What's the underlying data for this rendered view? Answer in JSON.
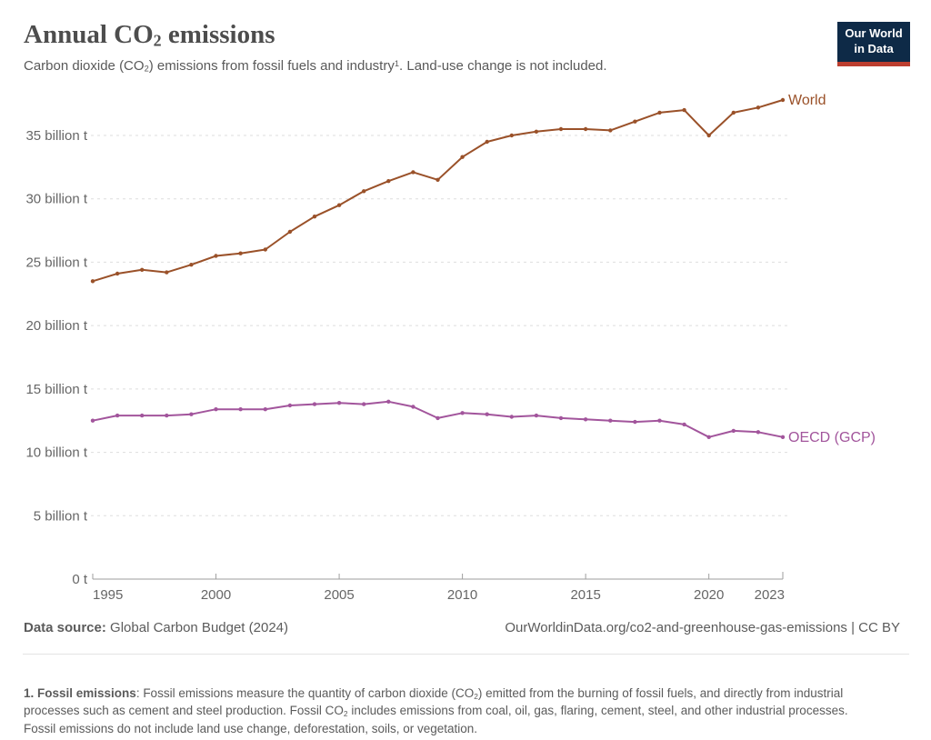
{
  "header": {
    "title_parts": [
      {
        "t": "Annual CO"
      },
      {
        "t": "2",
        "s": "sub"
      },
      {
        "t": " emissions"
      }
    ],
    "subtitle_parts": [
      {
        "t": "Carbon dioxide (CO"
      },
      {
        "t": "2",
        "s": "sub"
      },
      {
        "t": ") emissions from fossil fuels and industry"
      },
      {
        "t": "1",
        "s": "sup"
      },
      {
        "t": ". Land-use change is not included."
      }
    ]
  },
  "logo": {
    "line1": "Our World",
    "line2": "in Data",
    "bg": "#0e2a47",
    "bar": "#bc3e2f"
  },
  "chart_data": {
    "type": "line",
    "title": "Annual CO₂ emissions",
    "subtitle": "Carbon dioxide (CO₂) emissions from fossil fuels and industry¹. Land-use change is not included.",
    "xlabel": "",
    "ylabel": "",
    "unit": "billion t",
    "ylim": [
      0,
      37.8
    ],
    "grid": "horizontal-dashed",
    "legend_position": "end-of-line-labels",
    "years": [
      1995,
      1996,
      1997,
      1998,
      1999,
      2000,
      2001,
      2002,
      2003,
      2004,
      2005,
      2006,
      2007,
      2008,
      2009,
      2010,
      2011,
      2012,
      2013,
      2014,
      2015,
      2016,
      2017,
      2018,
      2019,
      2020,
      2021,
      2022,
      2023
    ],
    "series": [
      {
        "name": "World",
        "color": "#9a5129",
        "values": [
          23.5,
          24.1,
          24.4,
          24.2,
          24.8,
          25.5,
          25.7,
          26.0,
          27.4,
          28.6,
          29.5,
          30.6,
          31.4,
          32.1,
          31.5,
          33.3,
          34.5,
          35.0,
          35.3,
          35.5,
          35.5,
          35.4,
          36.1,
          36.8,
          37.0,
          35.0,
          36.8,
          37.2,
          37.8
        ]
      },
      {
        "name": "OECD (GCP)",
        "color": "#a2559c",
        "values": [
          12.5,
          12.9,
          12.9,
          12.9,
          13.0,
          13.4,
          13.4,
          13.4,
          13.7,
          13.8,
          13.9,
          13.8,
          14.0,
          13.6,
          12.7,
          13.1,
          13.0,
          12.8,
          12.9,
          12.7,
          12.6,
          12.5,
          12.4,
          12.5,
          12.2,
          11.2,
          11.7,
          11.6,
          11.2
        ]
      }
    ],
    "yticks": [
      {
        "v": 0,
        "label": "0 t"
      },
      {
        "v": 5,
        "label": "5 billion t"
      },
      {
        "v": 10,
        "label": "10 billion t"
      },
      {
        "v": 15,
        "label": "15 billion t"
      },
      {
        "v": 20,
        "label": "20 billion t"
      },
      {
        "v": 25,
        "label": "25 billion t"
      },
      {
        "v": 30,
        "label": "30 billion t"
      },
      {
        "v": 35,
        "label": "35 billion t"
      }
    ],
    "xticks": [
      {
        "year": 1995,
        "label": "1995",
        "align": "start"
      },
      {
        "year": 2000,
        "label": "2000",
        "align": "middle"
      },
      {
        "year": 2005,
        "label": "2005",
        "align": "middle"
      },
      {
        "year": 2010,
        "label": "2010",
        "align": "middle"
      },
      {
        "year": 2015,
        "label": "2015",
        "align": "middle"
      },
      {
        "year": 2020,
        "label": "2020",
        "align": "middle"
      },
      {
        "year": 2023,
        "label": "2023",
        "align": "end"
      }
    ],
    "colors": {
      "axis": "#9e9e9e",
      "gridline": "#dedede",
      "tick_label": "#666666",
      "world": "#9a5129",
      "oecd": "#a2559c"
    }
  },
  "footer": {
    "source_label": "Data source:",
    "source_value": " Global Carbon Budget (2024)",
    "credit": "OurWorldinData.org/co2-and-greenhouse-gas-emissions | CC BY"
  },
  "note_parts": [
    {
      "t": "1. Fossil emissions",
      "s": "b"
    },
    {
      "t": ": Fossil emissions measure the quantity of carbon dioxide (CO"
    },
    {
      "t": "2",
      "s": "sub"
    },
    {
      "t": ") emitted from the burning of fossil fuels, and directly from industrial processes such as cement and steel production. Fossil CO"
    },
    {
      "t": "2",
      "s": "sub"
    },
    {
      "t": " includes emissions from coal, oil, gas, flaring, cement, steel, and other industrial processes. Fossil emissions do not include land use change, deforestation, soils, or vegetation."
    }
  ]
}
